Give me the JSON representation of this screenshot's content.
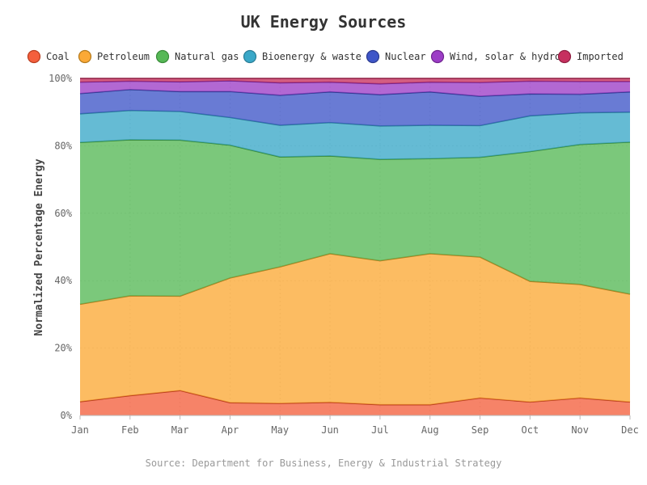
{
  "chart_data": {
    "type": "area",
    "stacked": true,
    "normalized": true,
    "title": "UK Energy Sources",
    "xlabel": "",
    "ylabel": "Normalized Percentage Energy",
    "ylim": [
      0,
      100
    ],
    "categories": [
      "Jan",
      "Feb",
      "Mar",
      "Apr",
      "May",
      "Jun",
      "Jul",
      "Aug",
      "Sep",
      "Oct",
      "Nov",
      "Dec"
    ],
    "y_ticks": [
      "0%",
      "20%",
      "40%",
      "60%",
      "80%",
      "100%"
    ],
    "grid": true,
    "legend_position": "top",
    "source": "Source: Department for Business, Energy & Industrial Strategy",
    "series": [
      {
        "name": "Coal",
        "color": "#f4603d",
        "line_color": "#b93d1f",
        "values": [
          4.1,
          5.9,
          7.4,
          3.8,
          3.6,
          3.9,
          3.2,
          3.2,
          5.2,
          4.0,
          5.2,
          4.0
        ]
      },
      {
        "name": "Petroleum",
        "color": "#fba936",
        "line_color": "#b37a1d",
        "values": [
          28.9,
          29.6,
          28.0,
          37.0,
          40.5,
          44.1,
          42.7,
          44.8,
          41.8,
          35.8,
          33.7,
          32.0
        ]
      },
      {
        "name": "Natural gas",
        "color": "#56b856",
        "line_color": "#3a8b3a",
        "values": [
          48.0,
          46.3,
          46.3,
          39.4,
          32.6,
          29.0,
          30.1,
          28.2,
          29.6,
          38.5,
          41.5,
          45.1
        ]
      },
      {
        "name": "Bioenergy & waste",
        "color": "#3aa8c8",
        "line_color": "#2a7d96",
        "values": [
          8.5,
          8.7,
          8.5,
          8.2,
          9.4,
          9.9,
          9.9,
          9.9,
          9.4,
          10.6,
          9.4,
          8.9
        ]
      },
      {
        "name": "Nuclear",
        "color": "#3f56c8",
        "line_color": "#2c3b8f",
        "values": [
          6.0,
          6.2,
          5.9,
          7.7,
          8.9,
          9.1,
          9.3,
          9.9,
          8.7,
          6.5,
          5.5,
          6.0
        ]
      },
      {
        "name": "Wind, solar & hydro",
        "color": "#9c3dc6",
        "line_color": "#70258f",
        "values": [
          3.4,
          2.5,
          2.9,
          3.2,
          3.7,
          2.9,
          3.2,
          2.9,
          4.1,
          3.8,
          3.8,
          3.1
        ]
      },
      {
        "name": "Imported",
        "color": "#c6305f",
        "line_color": "#8f1f42",
        "values": [
          1.1,
          0.8,
          1.0,
          0.7,
          1.3,
          1.1,
          1.6,
          1.1,
          1.2,
          0.8,
          0.9,
          0.9
        ]
      }
    ]
  }
}
